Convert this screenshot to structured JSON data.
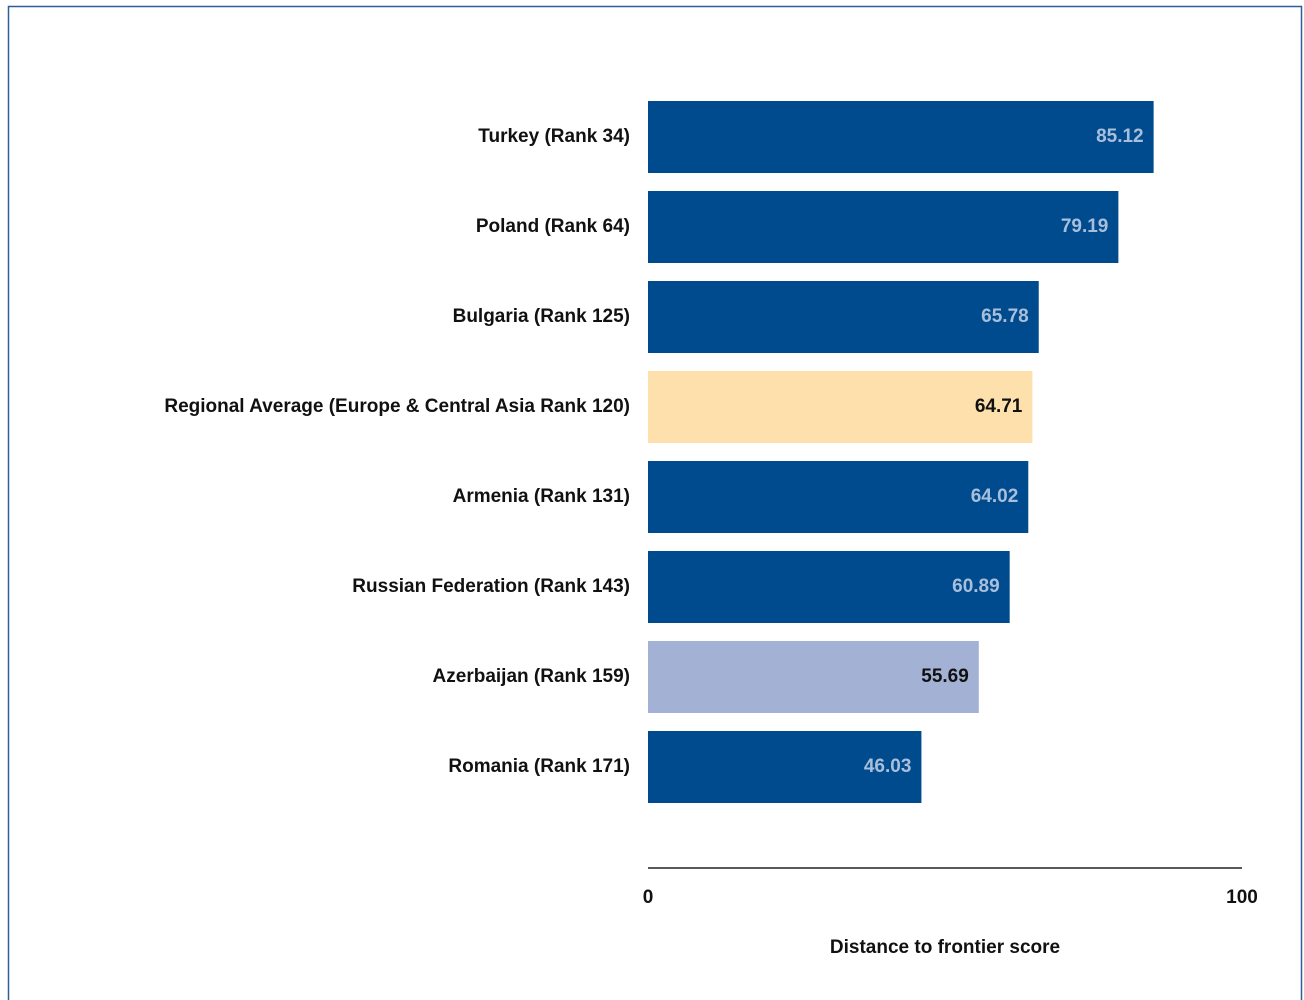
{
  "chart_data": {
    "type": "bar",
    "orientation": "horizontal",
    "categories": [
      "Turkey (Rank 34)",
      "Poland (Rank 64)",
      "Bulgaria (Rank 125)",
      "Regional Average (Europe & Central Asia Rank 120)",
      "Armenia (Rank 131)",
      "Russian Federation (Rank 143)",
      "Azerbaijan (Rank 159)",
      "Romania (Rank 171)"
    ],
    "values": [
      85.12,
      79.19,
      65.78,
      64.71,
      64.02,
      60.89,
      55.69,
      46.03
    ],
    "colors": [
      "#004b8d",
      "#004b8d",
      "#004b8d",
      "#fde0ac",
      "#004b8d",
      "#004b8d",
      "#a3b1d4",
      "#004b8d"
    ],
    "xlim": [
      0,
      100
    ],
    "xticks": [
      0,
      100
    ],
    "x_label": "Distance to frontier score"
  }
}
